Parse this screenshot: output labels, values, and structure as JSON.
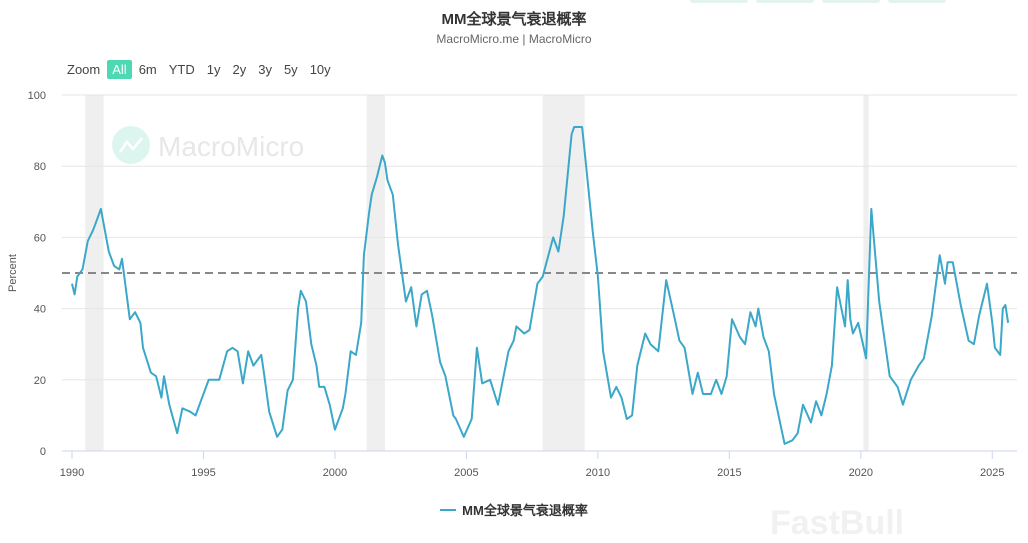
{
  "header": {
    "title": "MM全球景气衰退概率",
    "subtitle": "MacroMicro.me | MacroMicro"
  },
  "range_selector": {
    "label": "Zoom",
    "buttons": [
      "All",
      "6m",
      "YTD",
      "1y",
      "2y",
      "3y",
      "5y",
      "10y"
    ],
    "selected": "All"
  },
  "watermarks": [
    "MacroMicro",
    "FastBull"
  ],
  "colors": {
    "line": "#3ba8c9",
    "accent": "#4fd8b4",
    "threshold": "#888888",
    "recession_band": "#efefef"
  },
  "chart_data": {
    "type": "line",
    "title": "MM全球景气衰退概率",
    "xlabel": "",
    "ylabel": "Percent",
    "xlim": [
      1989.62,
      2025.94
    ],
    "ylim": [
      0,
      100
    ],
    "yticks": [
      0,
      20,
      40,
      60,
      80,
      100
    ],
    "xticks": [
      1990,
      1995,
      2000,
      2005,
      2010,
      2015,
      2020,
      2025
    ],
    "threshold": 50,
    "recession_bands": [
      [
        1990.5,
        1991.2
      ],
      [
        2001.2,
        2001.9
      ],
      [
        2007.9,
        2009.5
      ],
      [
        2020.1,
        2020.3
      ]
    ],
    "legend": {
      "position": "bottom",
      "entries": [
        "MM全球景气衰退概率"
      ]
    },
    "series": [
      {
        "name": "MM全球景气衰退概率",
        "points": [
          [
            1990.0,
            47
          ],
          [
            1990.1,
            44
          ],
          [
            1990.2,
            49
          ],
          [
            1990.4,
            51
          ],
          [
            1990.6,
            59
          ],
          [
            1990.8,
            62
          ],
          [
            1990.9,
            64
          ],
          [
            1991.1,
            68
          ],
          [
            1991.4,
            56
          ],
          [
            1991.6,
            52
          ],
          [
            1991.8,
            51
          ],
          [
            1991.9,
            54
          ],
          [
            1992.2,
            37
          ],
          [
            1992.4,
            39
          ],
          [
            1992.6,
            36
          ],
          [
            1992.7,
            29
          ],
          [
            1993.0,
            22
          ],
          [
            1993.2,
            21
          ],
          [
            1993.4,
            15
          ],
          [
            1993.5,
            21
          ],
          [
            1993.7,
            13
          ],
          [
            1994.0,
            5
          ],
          [
            1994.2,
            12
          ],
          [
            1994.5,
            11
          ],
          [
            1994.7,
            10
          ],
          [
            1994.9,
            14
          ],
          [
            1995.2,
            20
          ],
          [
            1995.6,
            20
          ],
          [
            1995.9,
            28
          ],
          [
            1996.1,
            29
          ],
          [
            1996.3,
            28
          ],
          [
            1996.5,
            19
          ],
          [
            1996.7,
            28
          ],
          [
            1996.9,
            24
          ],
          [
            1997.2,
            27
          ],
          [
            1997.3,
            22
          ],
          [
            1997.5,
            11
          ],
          [
            1997.8,
            4
          ],
          [
            1998.0,
            6
          ],
          [
            1998.2,
            17
          ],
          [
            1998.4,
            20
          ],
          [
            1998.6,
            40
          ],
          [
            1998.7,
            45
          ],
          [
            1998.9,
            42
          ],
          [
            1999.1,
            30
          ],
          [
            1999.3,
            24
          ],
          [
            1999.4,
            18
          ],
          [
            1999.6,
            18
          ],
          [
            1999.8,
            13
          ],
          [
            2000.0,
            6
          ],
          [
            2000.3,
            12
          ],
          [
            2000.4,
            16
          ],
          [
            2000.6,
            28
          ],
          [
            2000.8,
            27
          ],
          [
            2001.0,
            36
          ],
          [
            2001.1,
            55
          ],
          [
            2001.3,
            67
          ],
          [
            2001.4,
            72
          ],
          [
            2001.6,
            77
          ],
          [
            2001.8,
            83
          ],
          [
            2001.9,
            81
          ],
          [
            2002.0,
            76
          ],
          [
            2002.2,
            72
          ],
          [
            2002.4,
            58
          ],
          [
            2002.7,
            42
          ],
          [
            2002.9,
            46
          ],
          [
            2003.1,
            35
          ],
          [
            2003.3,
            44
          ],
          [
            2003.5,
            45
          ],
          [
            2003.7,
            38
          ],
          [
            2004.0,
            25
          ],
          [
            2004.2,
            21
          ],
          [
            2004.5,
            10
          ],
          [
            2004.6,
            9
          ],
          [
            2004.9,
            4
          ],
          [
            2005.2,
            9
          ],
          [
            2005.4,
            29
          ],
          [
            2005.6,
            19
          ],
          [
            2005.9,
            20
          ],
          [
            2006.2,
            13
          ],
          [
            2006.6,
            28
          ],
          [
            2006.8,
            31
          ],
          [
            2006.9,
            35
          ],
          [
            2007.2,
            33
          ],
          [
            2007.4,
            34
          ],
          [
            2007.7,
            47
          ],
          [
            2007.9,
            49
          ],
          [
            2008.3,
            60
          ],
          [
            2008.5,
            56
          ],
          [
            2008.7,
            66
          ],
          [
            2009.0,
            89
          ],
          [
            2009.1,
            91
          ],
          [
            2009.4,
            91
          ],
          [
            2009.5,
            84
          ],
          [
            2009.8,
            62
          ],
          [
            2010.0,
            49
          ],
          [
            2010.2,
            28
          ],
          [
            2010.5,
            15
          ],
          [
            2010.7,
            18
          ],
          [
            2010.9,
            15
          ],
          [
            2011.1,
            9
          ],
          [
            2011.3,
            10
          ],
          [
            2011.5,
            24
          ],
          [
            2011.8,
            33
          ],
          [
            2012.0,
            30
          ],
          [
            2012.3,
            28
          ],
          [
            2012.6,
            48
          ],
          [
            2012.9,
            38
          ],
          [
            2013.1,
            31
          ],
          [
            2013.3,
            29
          ],
          [
            2013.6,
            16
          ],
          [
            2013.8,
            22
          ],
          [
            2014.0,
            16
          ],
          [
            2014.3,
            16
          ],
          [
            2014.5,
            20
          ],
          [
            2014.7,
            16
          ],
          [
            2014.9,
            21
          ],
          [
            2015.1,
            37
          ],
          [
            2015.4,
            32
          ],
          [
            2015.6,
            30
          ],
          [
            2015.8,
            39
          ],
          [
            2016.0,
            35
          ],
          [
            2016.1,
            40
          ],
          [
            2016.3,
            32
          ],
          [
            2016.5,
            28
          ],
          [
            2016.7,
            16
          ],
          [
            2017.1,
            2
          ],
          [
            2017.4,
            3
          ],
          [
            2017.6,
            5
          ],
          [
            2017.8,
            13
          ],
          [
            2018.1,
            8
          ],
          [
            2018.3,
            14
          ],
          [
            2018.5,
            10
          ],
          [
            2018.7,
            16
          ],
          [
            2018.9,
            24
          ],
          [
            2019.1,
            46
          ],
          [
            2019.4,
            35
          ],
          [
            2019.5,
            48
          ],
          [
            2019.6,
            37
          ],
          [
            2019.7,
            33
          ],
          [
            2019.9,
            36
          ],
          [
            2020.2,
            26
          ],
          [
            2020.4,
            68
          ],
          [
            2020.7,
            42
          ],
          [
            2021.1,
            21
          ],
          [
            2021.4,
            18
          ],
          [
            2021.6,
            13
          ],
          [
            2021.9,
            20
          ],
          [
            2022.2,
            24
          ],
          [
            2022.4,
            26
          ],
          [
            2022.7,
            38
          ],
          [
            2023.0,
            55
          ],
          [
            2023.2,
            47
          ],
          [
            2023.3,
            53
          ],
          [
            2023.5,
            53
          ],
          [
            2023.8,
            41
          ],
          [
            2024.1,
            31
          ],
          [
            2024.3,
            30
          ],
          [
            2024.5,
            38
          ],
          [
            2024.8,
            47
          ],
          [
            2025.0,
            36
          ],
          [
            2025.1,
            29
          ],
          [
            2025.3,
            27
          ],
          [
            2025.4,
            40
          ],
          [
            2025.5,
            41
          ],
          [
            2025.6,
            36
          ]
        ]
      }
    ]
  }
}
